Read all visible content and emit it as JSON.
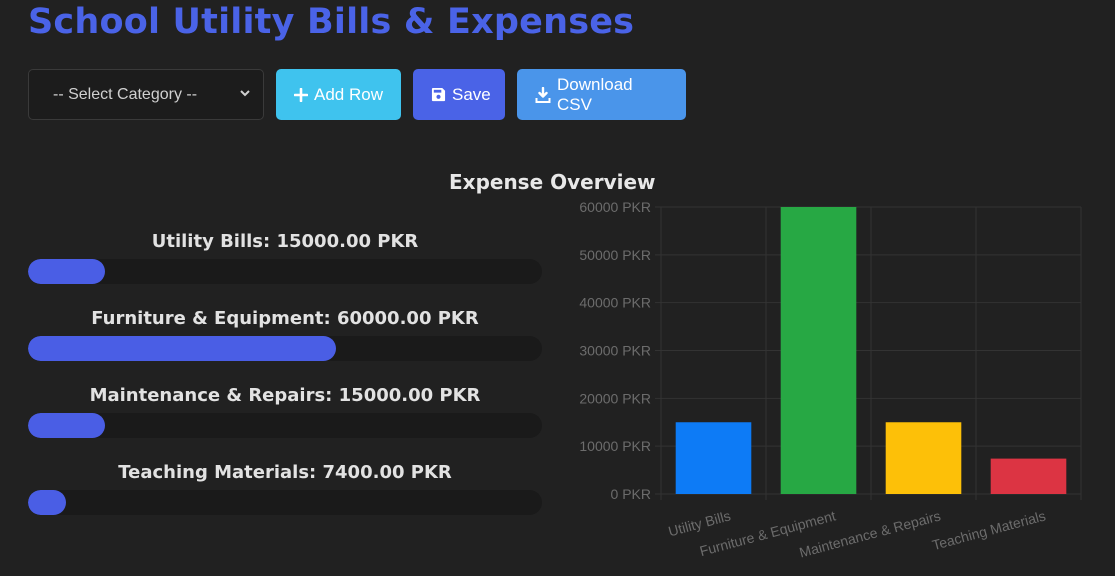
{
  "page": {
    "title": "School Utility Bills & Expenses"
  },
  "toolbar": {
    "category_select": "-- Select Category --",
    "add_row_label": "Add Row",
    "save_label": "Save",
    "download_label": "Download CSV"
  },
  "overview": {
    "title": "Expense Overview",
    "items": [
      {
        "label": "Utility Bills: 15000.00 PKR",
        "fraction": 0.15
      },
      {
        "label": "Furniture & Equipment: 60000.00 PKR",
        "fraction": 0.6
      },
      {
        "label": "Maintenance & Repairs: 15000.00 PKR",
        "fraction": 0.15
      },
      {
        "label": "Teaching Materials: 7400.00 PKR",
        "fraction": 0.074
      }
    ]
  },
  "chart_data": {
    "type": "bar",
    "categories": [
      "Utility Bills",
      "Furniture & Equipment",
      "Maintenance & Repairs",
      "Teaching Materials"
    ],
    "values": [
      15000,
      60000,
      15000,
      7400
    ],
    "colors": [
      "#0d7bf6",
      "#27a844",
      "#fdc008",
      "#dc3443"
    ],
    "ylim": [
      0,
      60000
    ],
    "yticks": [
      "0 PKR",
      "10000 PKR",
      "20000 PKR",
      "30000 PKR",
      "40000 PKR",
      "50000 PKR",
      "60000 PKR"
    ],
    "grid": true
  }
}
